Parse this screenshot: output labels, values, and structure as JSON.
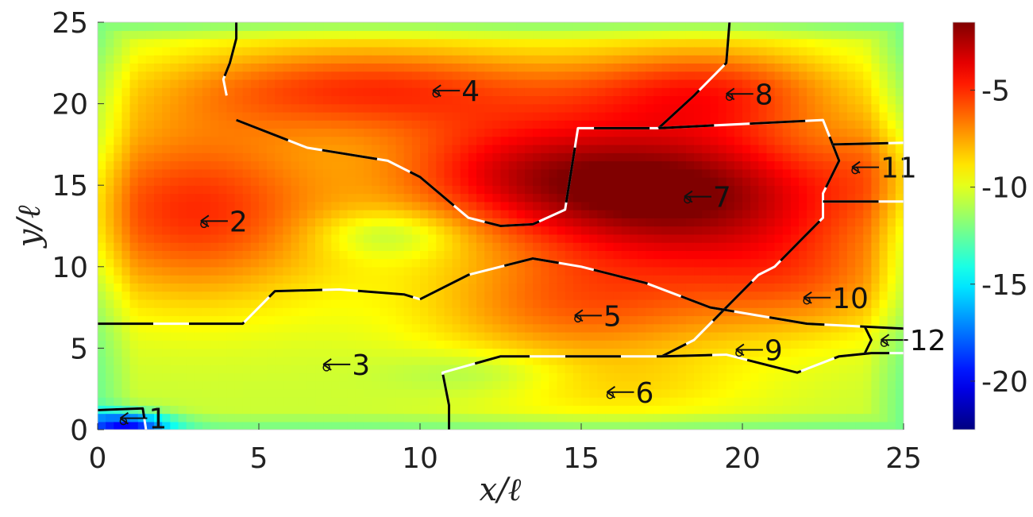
{
  "chart_data": {
    "type": "heatmap",
    "title": "",
    "xlabel": "x/ℓ",
    "ylabel": "y/ℓ",
    "xlim": [
      0,
      25
    ],
    "ylim": [
      0,
      25
    ],
    "x_ticks": [
      0,
      5,
      10,
      15,
      20,
      25
    ],
    "y_ticks": [
      0,
      5,
      10,
      15,
      20,
      25
    ],
    "colorbar": {
      "range": [
        -22.5,
        -1.5
      ],
      "ticks": [
        -5,
        -10,
        -15,
        -20
      ],
      "tick_labels": [
        "-5",
        "-10",
        "-15",
        "-20"
      ],
      "colormap": "jet"
    },
    "field_blobs": [
      {
        "x": 18.0,
        "y": 14.5,
        "sx": 4.0,
        "sy": 3.2,
        "amp": 9.0
      },
      {
        "x": 19.0,
        "y": 21.0,
        "sx": 3.0,
        "sy": 2.0,
        "amp": 4.5
      },
      {
        "x": 8.5,
        "y": 21.0,
        "sx": 4.5,
        "sy": 2.0,
        "amp": 5.0
      },
      {
        "x": 3.0,
        "y": 13.5,
        "sx": 3.2,
        "sy": 4.0,
        "amp": 5.5
      },
      {
        "x": 15.0,
        "y": 7.5,
        "sx": 3.5,
        "sy": 2.5,
        "amp": 4.0
      },
      {
        "x": 12.5,
        "y": 16.0,
        "sx": 3.0,
        "sy": 2.5,
        "amp": 4.0
      },
      {
        "x": 22.0,
        "y": 9.0,
        "sx": 2.5,
        "sy": 2.5,
        "amp": 3.0
      },
      {
        "x": 24.5,
        "y": 16.0,
        "sx": 1.5,
        "sy": 2.5,
        "amp": 2.0
      },
      {
        "x": 16.0,
        "y": 2.5,
        "sx": 3.5,
        "sy": 1.5,
        "amp": 1.5
      },
      {
        "x": 9.0,
        "y": 12.0,
        "sx": 1.5,
        "sy": 1.0,
        "amp": -2.0
      },
      {
        "x": 0.8,
        "y": 0.3,
        "sx": 1.0,
        "sy": 0.6,
        "amp": -8.0
      },
      {
        "x": 12.0,
        "y": 3.5,
        "sx": 2.0,
        "sy": 1.0,
        "amp": -1.5
      }
    ],
    "field_base": -10.5,
    "boundaries": [
      [
        [
          4.3,
          25
        ],
        [
          4.3,
          24
        ],
        [
          4.1,
          22.5
        ],
        [
          3.9,
          21.5
        ],
        [
          4.0,
          20.5
        ]
      ],
      [
        [
          0,
          6.5
        ],
        [
          2.5,
          6.5
        ],
        [
          4.5,
          6.5
        ],
        [
          5.5,
          8.5
        ],
        [
          7.5,
          8.6
        ],
        [
          9.5,
          8.3
        ],
        [
          10.0,
          8.0
        ]
      ],
      [
        [
          4.3,
          19.0
        ],
        [
          6.5,
          17.3
        ],
        [
          9.0,
          16.5
        ],
        [
          10.0,
          15.5
        ],
        [
          11.5,
          13.0
        ],
        [
          12.5,
          12.5
        ],
        [
          13.5,
          12.6
        ],
        [
          14.5,
          13.5
        ],
        [
          14.7,
          16.0
        ],
        [
          14.9,
          18.5
        ],
        [
          17.4,
          18.5
        ]
      ],
      [
        [
          17.4,
          18.5
        ],
        [
          18.5,
          20.5
        ],
        [
          19.5,
          22.5
        ],
        [
          19.6,
          25.0
        ]
      ],
      [
        [
          17.4,
          18.5
        ],
        [
          22.5,
          19.0
        ],
        [
          22.8,
          17.5
        ],
        [
          23.0,
          16.5
        ],
        [
          22.5,
          14.5
        ],
        [
          22.5,
          13.0
        ],
        [
          21.0,
          10.0
        ],
        [
          20.5,
          9.5
        ],
        [
          19.5,
          7.5
        ],
        [
          18.5,
          5.5
        ],
        [
          17.5,
          4.5
        ]
      ],
      [
        [
          10.0,
          8.0
        ],
        [
          11.5,
          9.5
        ],
        [
          13.5,
          10.5
        ],
        [
          15.0,
          10.0
        ],
        [
          17.0,
          9.0
        ],
        [
          19.0,
          7.5
        ],
        [
          22.0,
          6.5
        ],
        [
          24.0,
          6.3
        ],
        [
          25.0,
          6.2
        ]
      ],
      [
        [
          10.9,
          0
        ],
        [
          10.9,
          1.5
        ],
        [
          10.7,
          3.5
        ],
        [
          12.5,
          4.5
        ],
        [
          15.5,
          4.5
        ],
        [
          17.5,
          4.5
        ],
        [
          19.5,
          4.6
        ],
        [
          21.7,
          3.5
        ],
        [
          23.0,
          4.5
        ],
        [
          24.0,
          4.7
        ],
        [
          25.0,
          4.7
        ]
      ],
      [
        [
          22.8,
          17.5
        ],
        [
          25.0,
          17.6
        ]
      ],
      [
        [
          22.5,
          14.0
        ],
        [
          25.0,
          14.0
        ]
      ],
      [
        [
          23.8,
          6.3
        ],
        [
          24.0,
          5.5
        ],
        [
          23.8,
          4.7
        ]
      ],
      [
        [
          0,
          1.2
        ],
        [
          1.4,
          1.3
        ],
        [
          1.5,
          0
        ]
      ]
    ],
    "region_labels": [
      {
        "label": "1",
        "x": 0.7,
        "y": 0.7
      },
      {
        "label": "2",
        "x": 3.2,
        "y": 12.8
      },
      {
        "label": "3",
        "x": 7.0,
        "y": 4.0
      },
      {
        "label": "4",
        "x": 10.4,
        "y": 20.8
      },
      {
        "label": "5",
        "x": 14.8,
        "y": 7.0
      },
      {
        "label": "6",
        "x": 15.8,
        "y": 2.3
      },
      {
        "label": "7",
        "x": 18.2,
        "y": 14.3
      },
      {
        "label": "8",
        "x": 19.5,
        "y": 20.6
      },
      {
        "label": "9",
        "x": 19.8,
        "y": 4.9
      },
      {
        "label": "10",
        "x": 21.9,
        "y": 8.1
      },
      {
        "label": "11",
        "x": 23.4,
        "y": 16.1
      },
      {
        "label": "12",
        "x": 24.3,
        "y": 5.5
      }
    ]
  }
}
